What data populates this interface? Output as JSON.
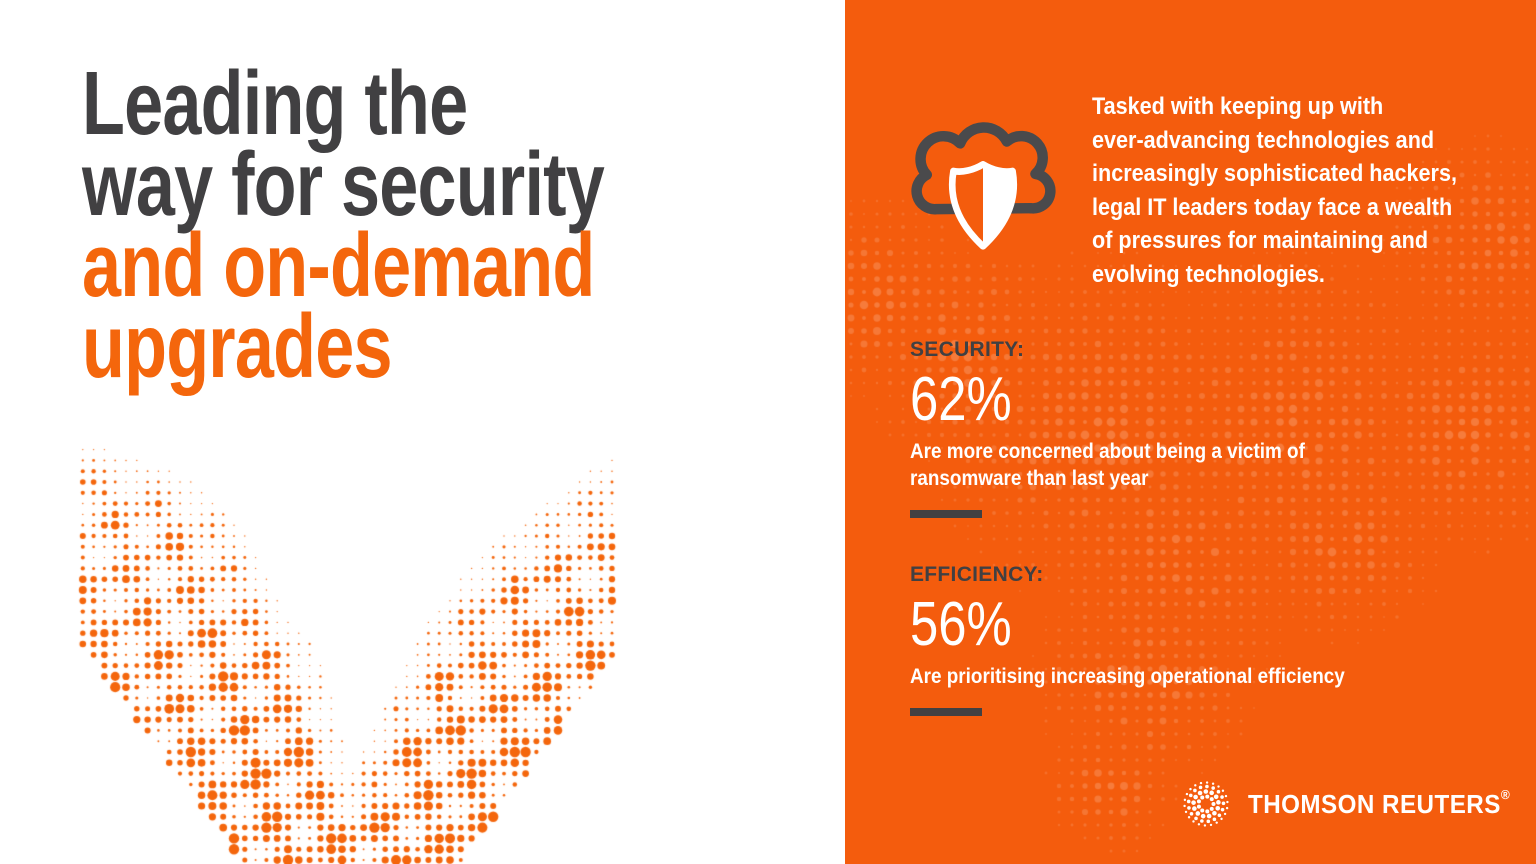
{
  "title": "Leading the way for security and on-demand upgrades",
  "left": {
    "heading_gray": "Leading the\nway for security",
    "heading_orange": "and on-demand\nupgrades"
  },
  "panel": {
    "intro": "Tasked with keeping up with\never-advancing technologies and\nincreasingly sophisticated hackers,\nlegal IT leaders today face a wealth\nof pressures for maintaining and\nevolving technologies.",
    "stats": [
      {
        "label": "SECURITY:",
        "value": "62%",
        "desc": "Are more concerned about being a victim of\nransomware than last year"
      },
      {
        "label": "EFFICIENCY:",
        "value": "56%",
        "desc": "Are prioritising increasing operational efficiency"
      }
    ],
    "brand": {
      "name": "THOMSON REUTERS",
      "reg": "®"
    }
  },
  "icons": {
    "cloud_shield": "cloud-security-shield-icon",
    "logo": "thomson-reuters-kinesis-logo"
  },
  "colors": {
    "panel_orange": "#F45C0D",
    "accent_orange": "#F4660C",
    "dark_gray": "#414042",
    "white": "#FFFFFF"
  }
}
